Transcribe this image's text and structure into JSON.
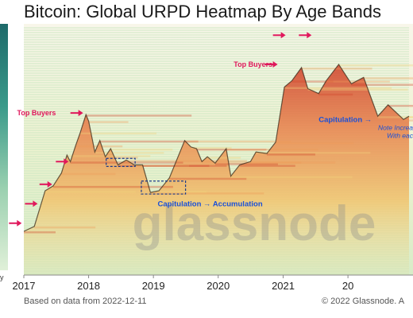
{
  "title": "Bitcoin: Global URPD Heatmap By Age Bands",
  "left_axis_fragment": "y",
  "footer": {
    "source": "Based on data from 2022-12-11",
    "copyright": "© 2022 Glassnode. A"
  },
  "watermark": "glassnode",
  "colors": {
    "hot": "#d2452b",
    "warm": "#ef9a5a",
    "mid": "#f2d27a",
    "cool": "#d9ecb0",
    "green": "#b8e0b8",
    "arrow": "#e0185c",
    "annotation_red": "#e0185c",
    "annotation_blue": "#1a50d8",
    "price_line": "#3a2a1a"
  },
  "chart_data": {
    "type": "heatmap",
    "title": "Bitcoin: Global URPD Heatmap By Age Bands",
    "x_ticks": [
      "2017",
      "2018",
      "2019",
      "2020",
      "2021",
      "20"
    ],
    "x_range": [
      "2017-01-01",
      "2022-12-11"
    ],
    "price_path": [
      [
        "2017-01-01",
        2.7
      ],
      [
        "2017-03-01",
        3.0
      ],
      [
        "2017-05-01",
        5.2
      ],
      [
        "2017-06-15",
        5.5
      ],
      [
        "2017-08-01",
        6.3
      ],
      [
        "2017-09-01",
        7.4
      ],
      [
        "2017-09-20",
        7.0
      ],
      [
        "2017-10-20",
        8.0
      ],
      [
        "2017-11-15",
        8.8
      ],
      [
        "2017-12-17",
        9.9
      ],
      [
        "2018-01-01",
        9.5
      ],
      [
        "2018-02-05",
        7.6
      ],
      [
        "2018-03-05",
        8.3
      ],
      [
        "2018-04-05",
        7.3
      ],
      [
        "2018-05-05",
        7.8
      ],
      [
        "2018-06-15",
        6.8
      ],
      [
        "2018-08-01",
        7.1
      ],
      [
        "2018-09-15",
        6.8
      ],
      [
        "2018-11-01",
        6.8
      ],
      [
        "2018-12-15",
        5.1
      ],
      [
        "2019-02-01",
        5.2
      ],
      [
        "2019-04-01",
        6.0
      ],
      [
        "2019-06-26",
        8.3
      ],
      [
        "2019-08-01",
        7.9
      ],
      [
        "2019-09-01",
        7.8
      ],
      [
        "2019-10-01",
        7.0
      ],
      [
        "2019-11-01",
        7.3
      ],
      [
        "2019-12-15",
        6.9
      ],
      [
        "2020-02-15",
        7.8
      ],
      [
        "2020-03-12",
        6.1
      ],
      [
        "2020-05-01",
        6.8
      ],
      [
        "2020-07-01",
        7.0
      ],
      [
        "2020-08-01",
        7.6
      ],
      [
        "2020-10-01",
        7.5
      ],
      [
        "2020-11-20",
        8.2
      ],
      [
        "2021-01-08",
        11.6
      ],
      [
        "2021-02-20",
        12.0
      ],
      [
        "2021-04-14",
        12.8
      ],
      [
        "2021-05-20",
        11.5
      ],
      [
        "2021-07-20",
        11.2
      ],
      [
        "2021-09-01",
        12.0
      ],
      [
        "2021-11-10",
        13.0
      ],
      [
        "2022-01-20",
        11.8
      ],
      [
        "2022-03-30",
        12.2
      ],
      [
        "2022-06-18",
        9.8
      ],
      [
        "2022-08-15",
        10.5
      ],
      [
        "2022-11-10",
        9.6
      ],
      [
        "2022-12-11",
        9.8
      ]
    ],
    "annotations": [
      {
        "text": "Top Buyers",
        "date": "2017-10-25",
        "level": 10.0
      },
      {
        "text": "Top Buyers",
        "date": "2020-11-20",
        "level": 13.0
      },
      {
        "text": "Capitulation → Accumulation",
        "date": "2019-01-25",
        "level": 4.4
      },
      {
        "text": "Capitulation →",
        "date": "2021-07-20",
        "level": 9.6
      },
      {
        "text": "Note Increa",
        "date": "2021-08-20",
        "level": 9.1
      },
      {
        "text": "With eac",
        "date": "2021-09-01",
        "level": 8.6
      }
    ],
    "arrows": [
      {
        "date": "2016-12-20",
        "level": 3.2
      },
      {
        "date": "2017-03-20",
        "level": 4.4
      },
      {
        "date": "2017-06-10",
        "level": 5.6
      },
      {
        "date": "2017-09-10",
        "level": 7.0
      },
      {
        "date": "2017-12-01",
        "level": 10.0
      },
      {
        "date": "2020-12-01",
        "level": 13.0
      },
      {
        "date": "2021-01-15",
        "level": 14.8
      },
      {
        "date": "2021-06-10",
        "level": 14.8
      }
    ],
    "boxes": [
      {
        "from": "2018-04-10",
        "to": "2018-09-20",
        "low": 6.7,
        "high": 7.2
      },
      {
        "from": "2018-10-25",
        "to": "2019-07-01",
        "low": 5.0,
        "high": 5.8
      }
    ]
  }
}
